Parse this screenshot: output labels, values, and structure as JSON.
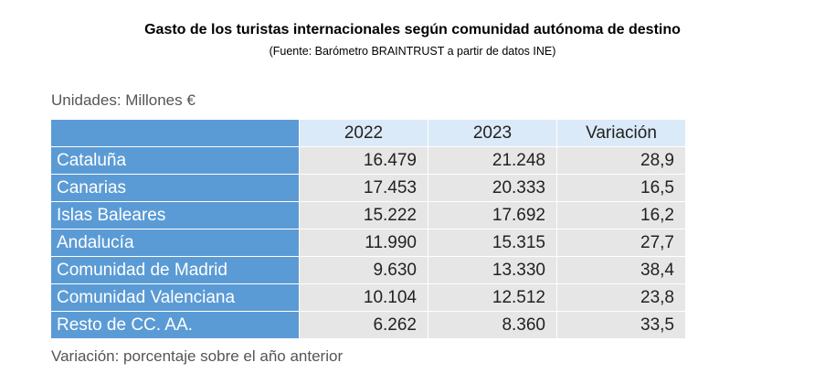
{
  "title": "Gasto de los turistas internacionales según comunidad autónoma de destino",
  "subtitle": "(Fuente: Barómetro BRAINTRUST a partir de datos INE)",
  "units_note": "Unidades: Millones €",
  "footnote": "Variación: porcentaje sobre el año anterior",
  "chart_data": {
    "type": "table",
    "title": "Gasto de los turistas internacionales según comunidad autónoma de destino",
    "columns": [
      "2022",
      "2023",
      "Variación"
    ],
    "rows": [
      {
        "region": "Cataluña",
        "v2022": "16.479",
        "v2023": "21.248",
        "var": "28,9"
      },
      {
        "region": "Canarias",
        "v2022": "17.453",
        "v2023": "20.333",
        "var": "16,5"
      },
      {
        "region": "Islas Baleares",
        "v2022": "15.222",
        "v2023": "17.692",
        "var": "16,2"
      },
      {
        "region": "Andalucía",
        "v2022": "11.990",
        "v2023": "15.315",
        "var": "27,7"
      },
      {
        "region": "Comunidad de Madrid",
        "v2022": "9.630",
        "v2023": "13.330",
        "var": "38,4"
      },
      {
        "region": "Comunidad Valenciana",
        "v2022": "10.104",
        "v2023": "12.512",
        "var": "23,8"
      },
      {
        "region": "Resto de CC. AA.",
        "v2022": "6.262",
        "v2023": "8.360",
        "var": "33,5"
      }
    ]
  },
  "colors": {
    "header_bg": "#dbeaf8",
    "region_bg": "#5b9bd5",
    "cell_bg": "#e6e6e6"
  }
}
